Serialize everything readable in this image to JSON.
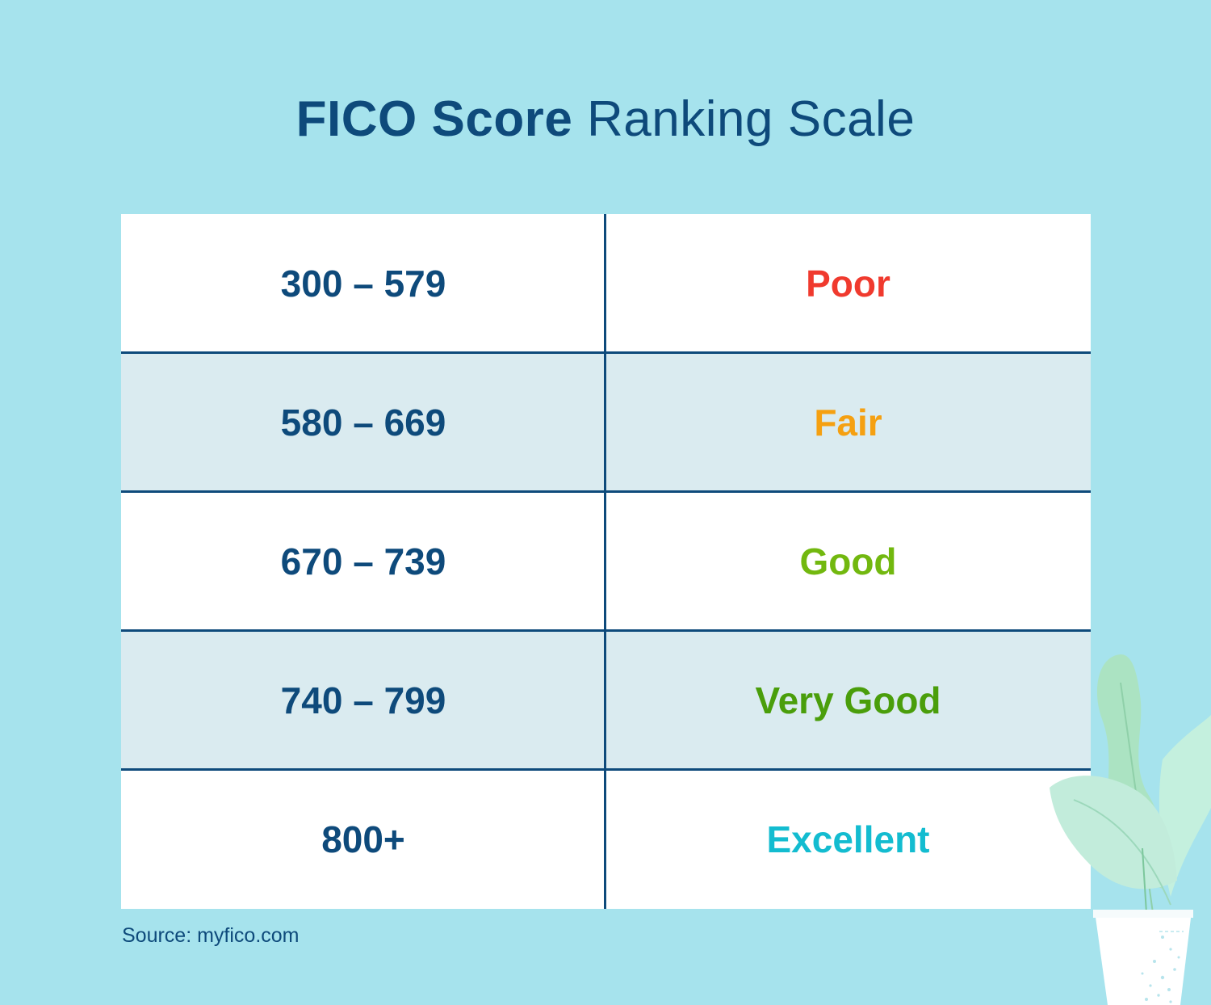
{
  "title": {
    "bold": "FICO Score",
    "regular": " Ranking Scale"
  },
  "rows": [
    {
      "range": "300 – 579",
      "rating": "Poor",
      "color": "#f03a2e"
    },
    {
      "range": "580 – 669",
      "rating": "Fair",
      "color": "#f5a011"
    },
    {
      "range": "670 – 739",
      "rating": "Good",
      "color": "#72b80f"
    },
    {
      "range": "740 – 799",
      "rating": "Very Good",
      "color": "#4a9e0b"
    },
    {
      "range": "800+",
      "rating": "Excellent",
      "color": "#13bcd0"
    }
  ],
  "source": "Source: myfico.com",
  "colors": {
    "background": "#a6e3ed",
    "text_dark": "#0e4a7b",
    "row_alt": "#daebf0"
  },
  "decoration": "potted-plant-icon"
}
